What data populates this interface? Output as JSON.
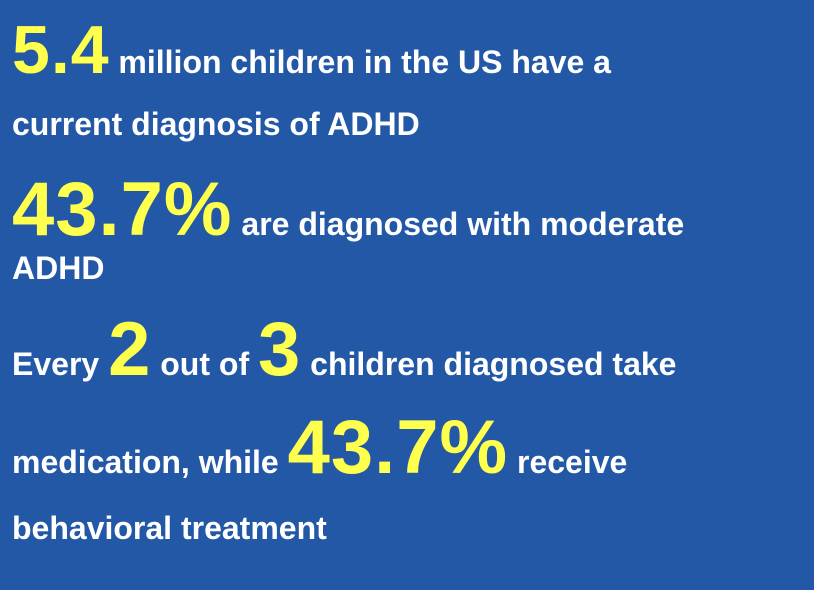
{
  "colors": {
    "background": "#2358a6",
    "text": "#ffffff",
    "highlight": "#ffff4d"
  },
  "stat1": {
    "number": "5.4",
    "text_a": " million children in the US have a",
    "text_b": "current diagnosis of ADHD"
  },
  "stat2": {
    "number": "43.7%",
    "text_a": " are diagnosed with  moderate",
    "text_b": "ADHD"
  },
  "stat3": {
    "prefix": "Every ",
    "num1": "2",
    "mid": " out of ",
    "num2": "3",
    "text_a": " children diagnosed take",
    "text_b": "medication, while ",
    "number": "43.7%",
    "text_c": " receive",
    "text_d": "behavioral treatment"
  }
}
